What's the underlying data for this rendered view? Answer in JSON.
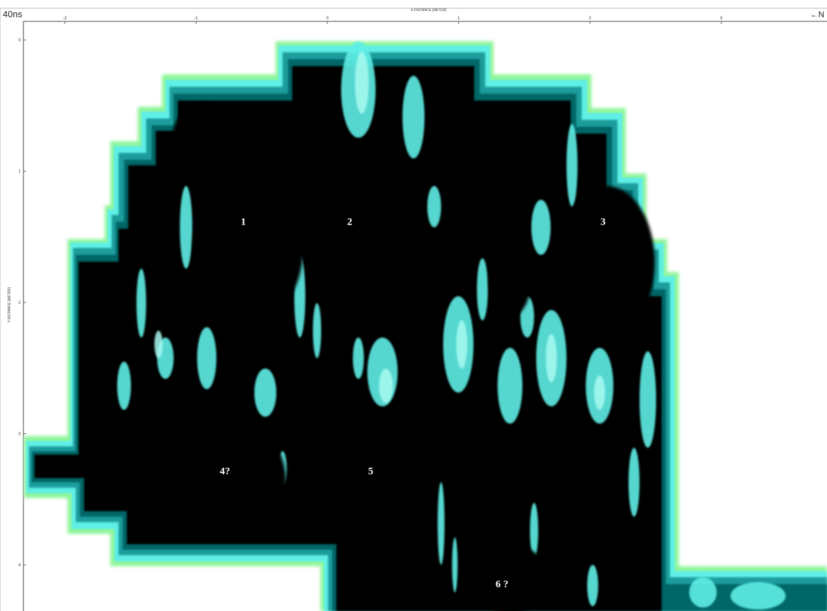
{
  "header": {
    "time_slice": "40ns",
    "north_arrow": "←N",
    "x_axis_label": "X-DISTANCE [METER]",
    "y_axis_label": "Y-DISTANCE [METER]"
  },
  "chart_data": {
    "type": "heatmap",
    "title": "",
    "xlabel": "X-DISTANCE [METER]",
    "ylabel": "Y-DISTANCE [METER]",
    "x_ticks": [
      "-2",
      "-1",
      "0",
      "1",
      "2",
      "3"
    ],
    "y_ticks": [
      "0",
      "1",
      "2",
      "3",
      "4"
    ],
    "xlim": [
      -2.5,
      3.8
    ],
    "ylim": [
      -0.1,
      4.3
    ],
    "y_inverted": true,
    "colors": {
      "strong": "#000000",
      "dark_teal": "#006666",
      "teal": "#1e9c9c",
      "cyan": "#5fefe6",
      "light_cyan": "#a8fbf1",
      "green": "#8ff59a",
      "background": "#ffffff"
    },
    "annotations": [
      {
        "label": "1",
        "x": -0.64,
        "y": 1.41
      },
      {
        "label": "2",
        "x": 0.17,
        "y": 1.41
      },
      {
        "label": "3",
        "x": 2.1,
        "y": 1.41
      },
      {
        "label": "4?",
        "x": -0.78,
        "y": 3.31
      },
      {
        "label": "5",
        "x": 0.33,
        "y": 3.31
      },
      {
        "label": "6 ?",
        "x": 1.33,
        "y": 4.17
      }
    ]
  }
}
